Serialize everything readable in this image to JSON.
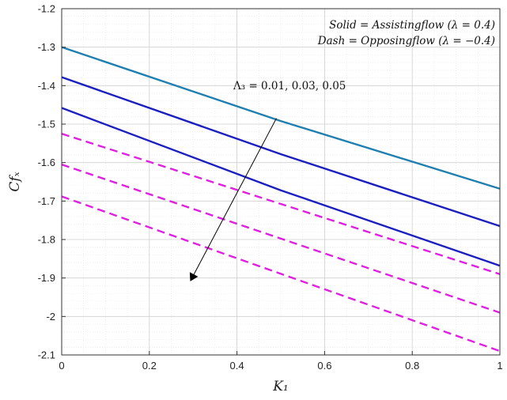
{
  "chart_data": {
    "type": "line",
    "xlabel": "K₁",
    "ylabel": "Cfₓ",
    "xlim": [
      0,
      1
    ],
    "ylim": [
      -2.1,
      -1.2
    ],
    "x_ticks": [
      0,
      0.2,
      0.4,
      0.6,
      0.8,
      1
    ],
    "x_tick_labels": [
      "0",
      "0.2",
      "0.4",
      "0.6",
      "0.8",
      "1"
    ],
    "y_ticks": [
      -2.1,
      -2.0,
      -1.9,
      -1.8,
      -1.7,
      -1.6,
      -1.5,
      -1.4,
      -1.3,
      -1.2
    ],
    "y_tick_labels": [
      "-2.1",
      "-2",
      "-1.9",
      "-1.8",
      "-1.7",
      "-1.6",
      "-1.5",
      "-1.4",
      "-1.3",
      "-1.2"
    ],
    "grid": true,
    "legend": {
      "placement": "top-right",
      "lines": [
        "Solid = Assistingflow (λ = 0.4)",
        "Dash = Opposingflow (λ = −0.4)"
      ]
    },
    "annotation": {
      "text": "Λ₃ = 0.01, 0.03, 0.05",
      "arrow_from": [
        0.49,
        -1.485
      ],
      "arrow_to": [
        0.295,
        -1.905
      ]
    },
    "series": [
      {
        "style": "solid",
        "color": "#1f7fb0",
        "x": [
          0,
          0.5,
          1
        ],
        "y": [
          -1.3,
          -1.492,
          -1.668
        ]
      },
      {
        "style": "solid",
        "color": "#1b1fbf",
        "x": [
          0,
          0.5,
          1
        ],
        "y": [
          -1.378,
          -1.578,
          -1.765
        ]
      },
      {
        "style": "solid",
        "color": "#1b1fbf",
        "x": [
          0,
          0.5,
          1
        ],
        "y": [
          -1.458,
          -1.672,
          -1.868
        ]
      },
      {
        "style": "dashed",
        "color": "#e020e0",
        "x": [
          0,
          1
        ],
        "y": [
          -1.525,
          -1.89
        ]
      },
      {
        "style": "dashed",
        "color": "#e020e0",
        "x": [
          0,
          1
        ],
        "y": [
          -1.605,
          -1.99
        ]
      },
      {
        "style": "dashed",
        "color": "#e020e0",
        "x": [
          0,
          1
        ],
        "y": [
          -1.688,
          -2.09
        ]
      }
    ]
  }
}
